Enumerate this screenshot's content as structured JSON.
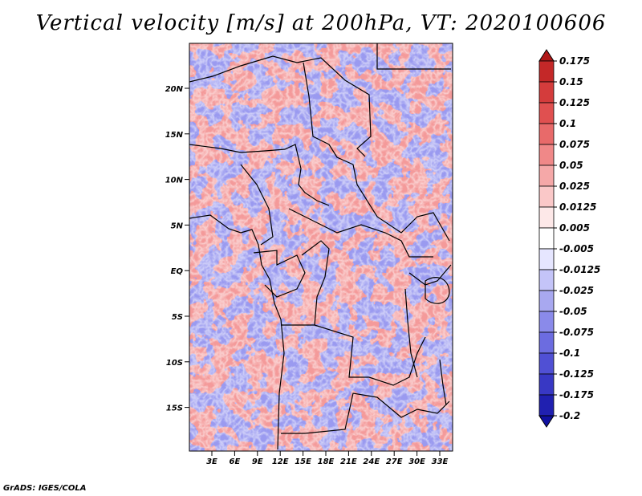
{
  "title": "Vertical velocity [m/s] at 200hPa, VT: 2020100606",
  "credit": "GrADS: IGES/COLA",
  "map": {
    "lat_labels": [
      "20N",
      "15N",
      "10N",
      "5N",
      "EQ",
      "5S",
      "10S",
      "15S"
    ],
    "lon_labels": [
      "3E",
      "6E",
      "9E",
      "12E",
      "15E",
      "18E",
      "21E",
      "24E",
      "27E",
      "30E",
      "33E"
    ]
  },
  "colorbar": {
    "labels": [
      "0.175",
      "0.15",
      "0.125",
      "0.1",
      "0.075",
      "0.05",
      "0.025",
      "0.0125",
      "0.005",
      "-0.005",
      "-0.0125",
      "-0.025",
      "-0.05",
      "-0.075",
      "-0.1",
      "-0.125",
      "-0.175",
      "-0.2"
    ],
    "colors": [
      "#b01818",
      "#c42828",
      "#d43c3c",
      "#e05050",
      "#e86a6a",
      "#f08888",
      "#f5a8a8",
      "#fac8c8",
      "#fde8e8",
      "#ffffff",
      "#e6e6ff",
      "#c4c4f8",
      "#a8a8f0",
      "#8a8aea",
      "#6c6ce0",
      "#5050d4",
      "#3838c4",
      "#2020b0",
      "#1010a0"
    ]
  }
}
